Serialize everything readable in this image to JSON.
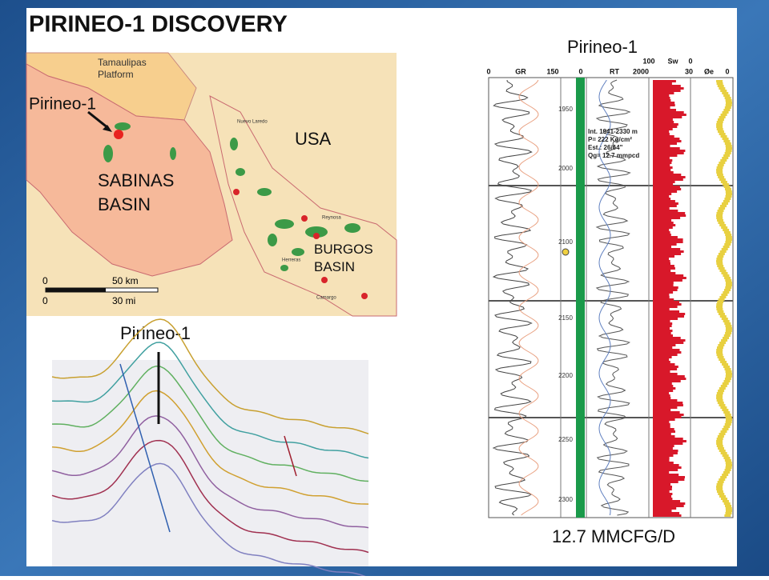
{
  "title": "PIRINEO-1 DISCOVERY",
  "map": {
    "platform": "Tamaulipas Platform",
    "well": "Pirineo-1",
    "country": "USA",
    "basin_1": "SABINAS BASIN",
    "basin_2": "BURGOS BASIN",
    "towns": [
      "Nuevo Laredo",
      "Reynosa",
      "Camargo",
      "Herreras"
    ],
    "scale": {
      "km_start": "0",
      "km_end": "50 km",
      "mi_start": "0",
      "mi_end": "30 mi"
    }
  },
  "seismic": {
    "well": "Pirineo-1"
  },
  "log": {
    "well": "Pirineo-1",
    "headers": [
      "0",
      "GR",
      "150",
      "0",
      "RT",
      "2000",
      "100",
      "Sw",
      "0",
      "30",
      "Øe",
      "0"
    ],
    "depths": [
      "1950",
      "2000",
      "2100",
      "2150",
      "2200",
      "2250",
      "2300"
    ],
    "annotation": [
      "Int. 1941-2330 m",
      "P= 222 Kg/cm²",
      "Est.: 26/64\"",
      "Qg= 12.7 mmpcd"
    ],
    "rate": "12.7 MMCFG/D"
  }
}
